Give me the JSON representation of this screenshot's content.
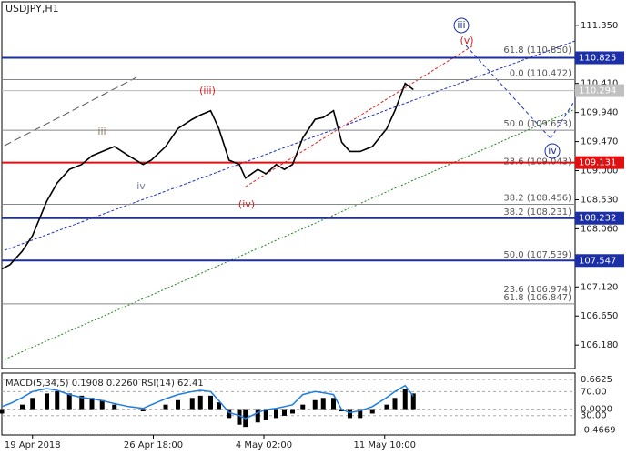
{
  "chart_data": {
    "type": "line",
    "title": "USDJPY,H1",
    "x": [
      0,
      4,
      10,
      15,
      22,
      27,
      33,
      39,
      44,
      49,
      55,
      62,
      69,
      73,
      80,
      86,
      93,
      97,
      102,
      106,
      111,
      116,
      119,
      125,
      129,
      134,
      138,
      142,
      147,
      153,
      157,
      162,
      166,
      170,
      175,
      181,
      188,
      192,
      197,
      201
    ],
    "series": [
      {
        "name": "USDJPY",
        "color": "#000000",
        "values": [
          107.41,
          107.48,
          107.7,
          107.95,
          108.51,
          108.8,
          109.02,
          109.1,
          109.24,
          109.31,
          109.39,
          109.24,
          109.1,
          109.17,
          109.39,
          109.68,
          109.83,
          109.9,
          109.97,
          109.68,
          109.17,
          109.1,
          108.88,
          109.02,
          108.95,
          109.1,
          109.02,
          109.1,
          109.53,
          109.83,
          109.86,
          109.97,
          109.46,
          109.31,
          109.31,
          109.39,
          109.68,
          109.97,
          110.41,
          110.31
        ]
      }
    ],
    "xlim": [
      0,
      280
    ],
    "xticks": [
      {
        "value": 15,
        "label": "19 Apr 2018"
      },
      {
        "value": 74,
        "label": "26 Apr 18:00"
      },
      {
        "value": 128,
        "label": "4 May 02:00"
      },
      {
        "value": 187,
        "label": "11 May 10:00"
      }
    ],
    "ylim": [
      105.8,
      111.73
    ],
    "yticks": [
      {
        "value": 111.35,
        "label": "111.350"
      },
      {
        "value": 110.41,
        "label": "110.410"
      },
      {
        "value": 109.94,
        "label": "109.940"
      },
      {
        "value": 109.47,
        "label": "109.470"
      },
      {
        "value": 109.0,
        "label": "109.000"
      },
      {
        "value": 108.53,
        "label": "108.530"
      },
      {
        "value": 108.06,
        "label": "108.060"
      },
      {
        "value": 107.12,
        "label": "107.120"
      },
      {
        "value": 106.65,
        "label": "106.650"
      },
      {
        "value": 106.18,
        "label": "106.180"
      }
    ],
    "levels": [
      {
        "value": 110.825,
        "color": "#1c2fa6"
      },
      {
        "value": 109.131,
        "color": "#e01010"
      },
      {
        "value": 108.232,
        "color": "#1c2fa6"
      },
      {
        "value": 107.547,
        "color": "#1c2fa6"
      }
    ],
    "current_price": 110.294,
    "fib_levels": [
      {
        "value": 110.85,
        "label": "61.8 (110.850)",
        "line": false
      },
      {
        "value": 110.472,
        "label": "0.0 (110.472)",
        "line": true
      },
      {
        "value": 109.653,
        "label": "50.0 (109.653)",
        "line": true
      },
      {
        "value": 109.043,
        "label": "23.6 (109.043)",
        "line": false
      },
      {
        "value": 108.456,
        "label": "38.2 (108.456)",
        "line": true
      },
      {
        "value": 108.231,
        "label": "38.2 (108.231)",
        "line": false
      },
      {
        "value": 107.539,
        "label": "50.0 (107.539)",
        "line": false
      },
      {
        "value": 106.974,
        "label": "23.6 (106.974)",
        "line": false
      },
      {
        "value": 106.847,
        "label": "61.8 (106.847)",
        "line": true
      }
    ],
    "annotations": [
      {
        "text": "(iii)",
        "color": "#d42020",
        "circled": false
      },
      {
        "text": "iii",
        "color": "#8a7a6a",
        "circled": false
      },
      {
        "text": "iv",
        "color": "#7a7a9a",
        "circled": false
      },
      {
        "text": "(iv)",
        "color": "#d42020",
        "circled": false
      },
      {
        "text": "(v)",
        "color": "#d42020",
        "circled": false
      },
      {
        "text": "iii",
        "color": "#1c2fa6",
        "circled": true
      },
      {
        "text": "iv",
        "color": "#1c2fa6",
        "circled": true
      }
    ],
    "indicator_label": "MACD(5,34,5) 0.1908 0.2260 RSI(14) 62.41",
    "macd": {
      "values": [
        -0.1,
        0,
        0.1,
        0.25,
        0.35,
        0.4,
        0.35,
        0.3,
        0.25,
        0.2,
        0.1,
        0,
        -0.05,
        0,
        0.1,
        0.2,
        0.25,
        0.3,
        0.3,
        0.15,
        -0.2,
        -0.35,
        -0.4,
        -0.3,
        -0.25,
        -0.2,
        -0.15,
        -0.1,
        0.1,
        0.2,
        0.25,
        0.25,
        -0.05,
        -0.2,
        -0.2,
        -0.1,
        0.1,
        0.25,
        0.45,
        0.35
      ],
      "ylim": [
        -0.58,
        0.807
      ],
      "yticks": [
        0.6625,
        {
          "value": 0,
          "label": "0.0000"
        },
        -0.4669
      ]
    },
    "rsi": {
      "values": [
        45,
        50,
        60,
        70,
        75,
        72,
        65,
        60,
        58,
        55,
        50,
        45,
        42,
        48,
        58,
        65,
        70,
        72,
        70,
        55,
        35,
        30,
        25,
        35,
        40,
        42,
        45,
        48,
        65,
        70,
        68,
        65,
        40,
        35,
        38,
        45,
        60,
        70,
        80,
        62.41
      ],
      "color": "#1e7de0",
      "ylim": [
        -2.3,
        100.8
      ],
      "yticks": [
        {
          "value": 70,
          "label": "70.00"
        },
        {
          "value": 30,
          "label": "30.00"
        }
      ]
    }
  }
}
